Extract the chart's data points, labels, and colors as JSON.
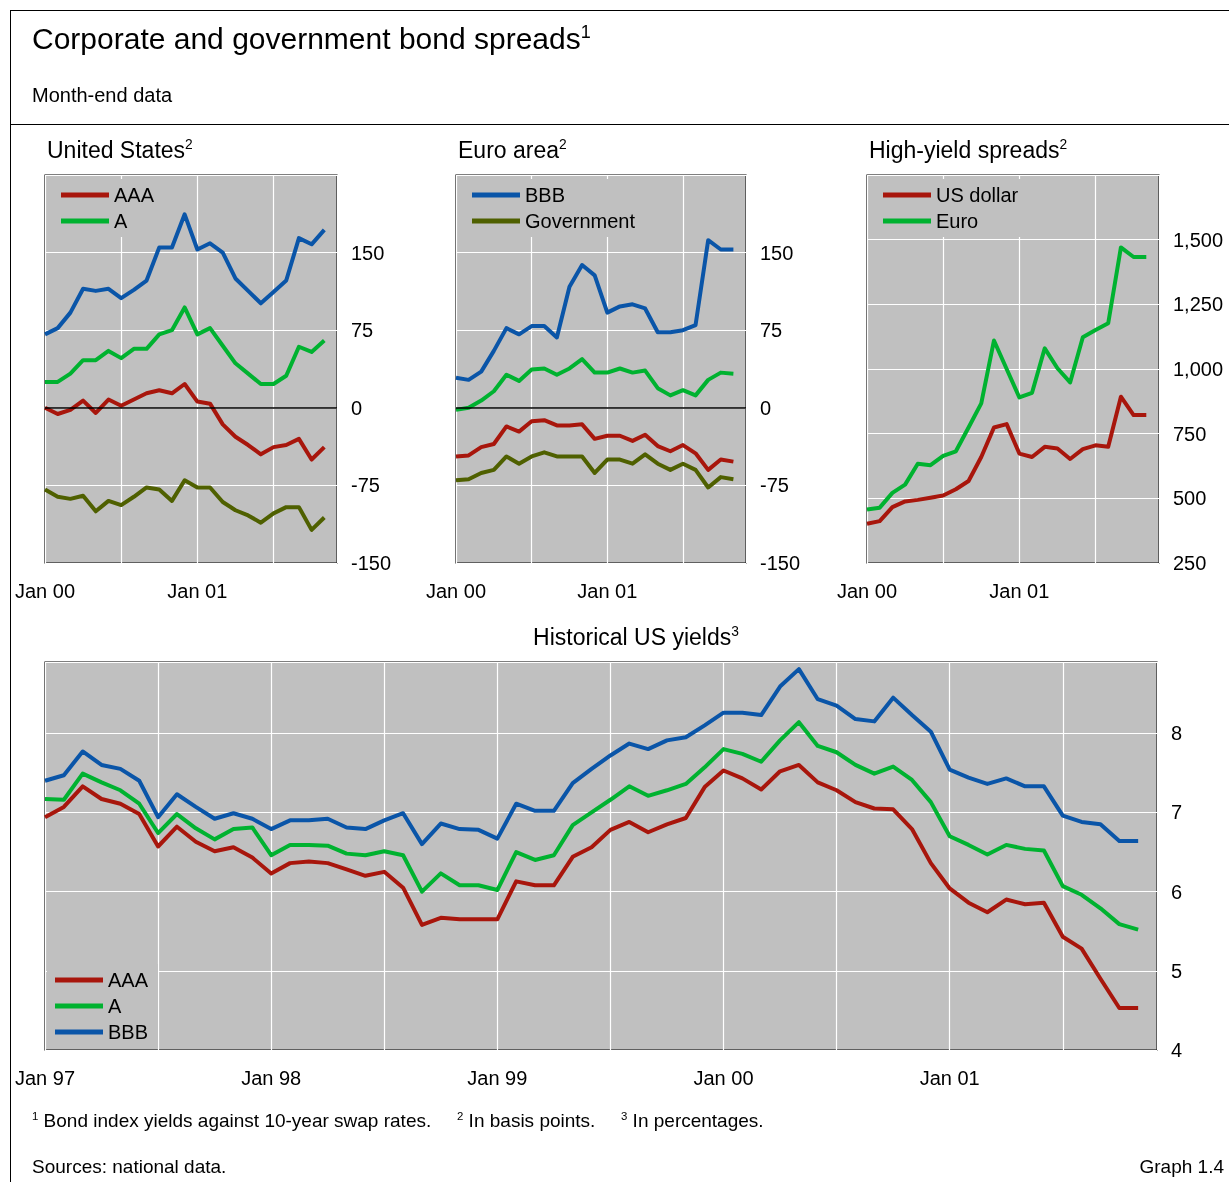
{
  "chart_data": [
    {
      "type": "line",
      "title": "United States$^{2}$",
      "annotations": [
        "Corporate and government bond spreads$^{1}$",
        "Month-end data"
      ],
      "x": [
        "2000-01",
        "2000-02",
        "2000-03",
        "2000-04",
        "2000-05",
        "2000-06",
        "2000-07",
        "2000-08",
        "2000-09",
        "2000-10",
        "2000-11",
        "2000-12",
        "2001-01",
        "2001-02",
        "2001-03",
        "2001-04",
        "2001-05",
        "2001-06",
        "2001-07",
        "2001-08",
        "2001-09",
        "2001-10",
        "2001-11"
      ],
      "series": [
        {
          "name": "AAA",
          "color": "#a8160c",
          "values": [
            0,
            -6,
            -2,
            7,
            -5,
            8,
            2,
            8,
            14,
            17,
            14,
            23,
            6,
            4,
            -16,
            -28,
            -36,
            -45,
            -38,
            -36,
            -30,
            -50,
            -38
          ]
        },
        {
          "name": "A",
          "color": "#00b230",
          "values": [
            25,
            25,
            33,
            46,
            46,
            55,
            48,
            57,
            57,
            71,
            75,
            97,
            71,
            77,
            60,
            43,
            33,
            23,
            23,
            31,
            59,
            54,
            65
          ]
        },
        {
          "color": "#0a55a8",
          "values": [
            71,
            77,
            92,
            115,
            113,
            115,
            106,
            114,
            123,
            155,
            155,
            187,
            153,
            159,
            150,
            125,
            113,
            101,
            112,
            123,
            164,
            158,
            172
          ]
        },
        {
          "color": "#4f6000",
          "values": [
            -79,
            -86,
            -88,
            -85,
            -100,
            -90,
            -94,
            -86,
            -77,
            -79,
            -90,
            -70,
            -77,
            -77,
            -91,
            -99,
            -104,
            -111,
            -102,
            -96,
            -96,
            -118,
            -106
          ]
        }
      ],
      "xlim": [
        "2000-01",
        "2001-12"
      ],
      "xticks": [
        {
          "value": "2000-01",
          "label": "Jan 00"
        },
        {
          "value": "2000-07",
          "label": null
        },
        {
          "value": "2001-01",
          "label": "Jan 01"
        },
        {
          "value": "2001-07",
          "label": null
        }
      ],
      "ylim": [
        -150,
        225
      ],
      "yticks": [
        -150,
        -75,
        0,
        75,
        150
      ],
      "ref_lines": [
        {
          "axis": "y",
          "value": 0,
          "color": "#000000"
        }
      ],
      "grid": true,
      "legend": "top left"
    },
    {
      "type": "line",
      "title": "Euro area$^{2}$",
      "x": [
        "2000-01",
        "2000-02",
        "2000-03",
        "2000-04",
        "2000-05",
        "2000-06",
        "2000-07",
        "2000-08",
        "2000-09",
        "2000-10",
        "2000-11",
        "2000-12",
        "2001-01",
        "2001-02",
        "2001-03",
        "2001-04",
        "2001-05",
        "2001-06",
        "2001-07",
        "2001-08",
        "2001-09",
        "2001-10",
        "2001-11"
      ],
      "series": [
        {
          "color": "#a8160c",
          "values": [
            -47,
            -46,
            -38,
            -35,
            -18,
            -23,
            -13,
            -12,
            -17,
            -17,
            -16,
            -30,
            -27,
            -27,
            -32,
            -26,
            -37,
            -42,
            -36,
            -44,
            -60,
            -50,
            -52
          ]
        },
        {
          "color": "#00b230",
          "values": [
            -2,
            0,
            7,
            16,
            32,
            26,
            37,
            38,
            32,
            38,
            47,
            34,
            34,
            38,
            34,
            36,
            19,
            12,
            17,
            12,
            27,
            34,
            33
          ]
        },
        {
          "name": "BBB",
          "color": "#0a55a8",
          "values": [
            29,
            27,
            35,
            55,
            77,
            71,
            79,
            79,
            68,
            117,
            138,
            128,
            92,
            98,
            100,
            96,
            73,
            73,
            75,
            80,
            162,
            153,
            153
          ]
        },
        {
          "name": "Government",
          "color": "#4f6000",
          "values": [
            -70,
            -69,
            -63,
            -60,
            -47,
            -54,
            -47,
            -43,
            -47,
            -47,
            -47,
            -63,
            -50,
            -50,
            -54,
            -45,
            -54,
            -60,
            -54,
            -60,
            -77,
            -67,
            -69
          ]
        }
      ],
      "xlim": [
        "2000-01",
        "2001-12"
      ],
      "xticks": [
        {
          "value": "2000-01",
          "label": "Jan 00"
        },
        {
          "value": "2000-07",
          "label": null
        },
        {
          "value": "2001-01",
          "label": "Jan 01"
        },
        {
          "value": "2001-07",
          "label": null
        }
      ],
      "ylim": [
        -150,
        225
      ],
      "yticks": [
        -150,
        -75,
        0,
        75,
        150
      ],
      "ref_lines": [
        {
          "axis": "y",
          "value": 0,
          "color": "#000000"
        }
      ],
      "grid": true,
      "legend": "top left"
    },
    {
      "type": "line",
      "title": "High-yield spreads$^{2}$",
      "x": [
        "2000-01",
        "2000-02",
        "2000-03",
        "2000-04",
        "2000-05",
        "2000-06",
        "2000-07",
        "2000-08",
        "2000-09",
        "2000-10",
        "2000-11",
        "2000-12",
        "2001-01",
        "2001-02",
        "2001-03",
        "2001-04",
        "2001-05",
        "2001-06",
        "2001-07",
        "2001-08",
        "2001-09",
        "2001-10",
        "2001-11"
      ],
      "series": [
        {
          "name": "US dollar",
          "color": "#a8160c",
          "values": [
            402,
            412,
            466,
            488,
            494,
            502,
            511,
            535,
            567,
            660,
            774,
            787,
            673,
            660,
            699,
            693,
            652,
            690,
            705,
            699,
            893,
            822,
            822
          ]
        },
        {
          "name": "Euro",
          "color": "#00b230",
          "values": [
            457,
            464,
            521,
            553,
            634,
            628,
            664,
            682,
            774,
            867,
            1110,
            1000,
            890,
            908,
            1080,
            1003,
            948,
            1123,
            1151,
            1177,
            1470,
            1433,
            1433
          ]
        }
      ],
      "xlim": [
        "2000-01",
        "2001-12"
      ],
      "xticks": [
        {
          "value": "2000-01",
          "label": "Jan 00"
        },
        {
          "value": "2000-07",
          "label": null
        },
        {
          "value": "2001-01",
          "label": "Jan 01"
        },
        {
          "value": "2001-07",
          "label": null
        }
      ],
      "ylim": [
        250,
        1750
      ],
      "yticks": [
        250,
        500,
        750,
        {
          "value": 1000,
          "label": "1,000"
        },
        {
          "value": 1250,
          "label": "1,250"
        },
        {
          "value": 1500,
          "label": "1,500"
        }
      ],
      "grid": true,
      "legend": "top left"
    },
    {
      "type": "line",
      "title": "Historical US yields$^{3}$",
      "annotations": [
        "$^{1}$ Bond index yields against 10-year swap rates.",
        "$^{2}$ In basis points.",
        "$^{3}$ In percentages.",
        "Sources: national data.",
        "Graph 1.4"
      ],
      "x": [
        "1997-01",
        "1997-02",
        "1997-03",
        "1997-04",
        "1997-05",
        "1997-06",
        "1997-07",
        "1997-08",
        "1997-09",
        "1997-10",
        "1997-11",
        "1997-12",
        "1998-01",
        "1998-02",
        "1998-03",
        "1998-04",
        "1998-05",
        "1998-06",
        "1998-07",
        "1998-08",
        "1998-09",
        "1998-10",
        "1998-11",
        "1998-12",
        "1999-01",
        "1999-02",
        "1999-03",
        "1999-04",
        "1999-05",
        "1999-06",
        "1999-07",
        "1999-08",
        "1999-09",
        "1999-10",
        "1999-11",
        "1999-12",
        "2000-01",
        "2000-02",
        "2000-03",
        "2000-04",
        "2000-05",
        "2000-06",
        "2000-07",
        "2000-08",
        "2000-09",
        "2000-10",
        "2000-11",
        "2000-12",
        "2001-01",
        "2001-02",
        "2001-03",
        "2001-04",
        "2001-05",
        "2001-06",
        "2001-07",
        "2001-08",
        "2001-09",
        "2001-10",
        "2001-11"
      ],
      "series": [
        {
          "name": "AAA",
          "color": "#a8160c",
          "values": [
            6.94,
            7.07,
            7.33,
            7.17,
            7.11,
            6.98,
            6.57,
            6.82,
            6.63,
            6.51,
            6.56,
            6.43,
            6.23,
            6.36,
            6.38,
            6.36,
            6.28,
            6.2,
            6.25,
            6.05,
            5.58,
            5.67,
            5.65,
            5.65,
            5.65,
            6.13,
            6.08,
            6.08,
            6.44,
            6.56,
            6.78,
            6.88,
            6.75,
            6.85,
            6.93,
            7.32,
            7.53,
            7.43,
            7.29,
            7.52,
            7.6,
            7.38,
            7.28,
            7.13,
            7.05,
            7.04,
            6.79,
            6.36,
            6.04,
            5.86,
            5.74,
            5.9,
            5.84,
            5.86,
            5.43,
            5.28,
            4.9,
            4.53,
            4.53
          ]
        },
        {
          "name": "A",
          "color": "#00b230",
          "values": [
            7.17,
            7.16,
            7.49,
            7.38,
            7.28,
            7.11,
            6.74,
            6.98,
            6.8,
            6.66,
            6.79,
            6.81,
            6.46,
            6.59,
            6.59,
            6.58,
            6.48,
            6.46,
            6.51,
            6.46,
            6.0,
            6.23,
            6.08,
            6.08,
            6.02,
            6.5,
            6.4,
            6.46,
            6.84,
            7.0,
            7.16,
            7.33,
            7.21,
            7.28,
            7.36,
            7.57,
            7.8,
            7.74,
            7.64,
            7.91,
            8.14,
            7.84,
            7.76,
            7.6,
            7.49,
            7.58,
            7.41,
            7.13,
            6.7,
            6.59,
            6.47,
            6.59,
            6.54,
            6.52,
            6.07,
            5.96,
            5.79,
            5.59,
            5.52
          ]
        },
        {
          "name": "BBB",
          "color": "#0a55a8",
          "values": [
            7.4,
            7.47,
            7.77,
            7.6,
            7.55,
            7.4,
            6.94,
            7.23,
            7.07,
            6.92,
            6.99,
            6.92,
            6.79,
            6.9,
            6.9,
            6.92,
            6.81,
            6.79,
            6.9,
            6.99,
            6.6,
            6.86,
            6.79,
            6.78,
            6.67,
            7.11,
            7.02,
            7.02,
            7.37,
            7.55,
            7.72,
            7.87,
            7.8,
            7.91,
            7.95,
            8.1,
            8.26,
            8.26,
            8.23,
            8.59,
            8.81,
            8.43,
            8.35,
            8.18,
            8.15,
            8.45,
            8.23,
            8.02,
            7.54,
            7.44,
            7.36,
            7.43,
            7.33,
            7.33,
            6.96,
            6.88,
            6.85,
            6.64,
            6.64
          ]
        }
      ],
      "xlim": [
        "1997-01",
        "2001-12"
      ],
      "xticks": [
        {
          "value": "1997-01",
          "label": "Jan 97"
        },
        {
          "value": "1997-07",
          "label": null
        },
        {
          "value": "1998-01",
          "label": "Jan 98"
        },
        {
          "value": "1998-07",
          "label": null
        },
        {
          "value": "1999-01",
          "label": "Jan 99"
        },
        {
          "value": "1999-07",
          "label": null
        },
        {
          "value": "2000-01",
          "label": "Jan 00"
        },
        {
          "value": "2000-07",
          "label": null
        },
        {
          "value": "2001-01",
          "label": "Jan 01"
        },
        {
          "value": "2001-07",
          "label": null
        }
      ],
      "ylim": [
        4,
        8.9
      ],
      "yticks": [
        4,
        5,
        6,
        7,
        8
      ],
      "grid": true,
      "legend": "bottom left"
    }
  ]
}
